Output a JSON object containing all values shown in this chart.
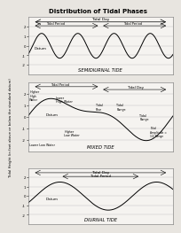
{
  "title": "Distribution of Tidal Phases",
  "ylabel": "Tidal Height (in feet above or below the standard datum)",
  "bg_color": "#e8e5e0",
  "white": "#ffffff",
  "panel1": {
    "subtitle": "Tidal Day",
    "label": "SEMIDIURNAL TIDE",
    "period_label": "Tidal Period",
    "datum_label": "Datum",
    "n_cycles": 4,
    "amplitude": 1.3,
    "ylim": [
      -3.0,
      3.0
    ],
    "yticks": [
      -2,
      -1,
      0,
      1,
      2
    ]
  },
  "panel2": {
    "subtitle_day": "Tidal Day",
    "period_label": "Tidal Period",
    "label": "MIXED TIDE",
    "datum_label": "Datum",
    "ylim": [
      -3.0,
      3.0
    ],
    "yticks": [
      -2,
      -1,
      0,
      1,
      2
    ]
  },
  "panel3": {
    "subtitle": "Tidal Day",
    "period_label": "Tidal Period",
    "label": "DIURNAL TIDE",
    "datum_label": "Datum",
    "amplitude": 1.5,
    "ylim": [
      -3.0,
      3.0
    ],
    "yticks": [
      -2,
      -1,
      0,
      1,
      2
    ]
  }
}
